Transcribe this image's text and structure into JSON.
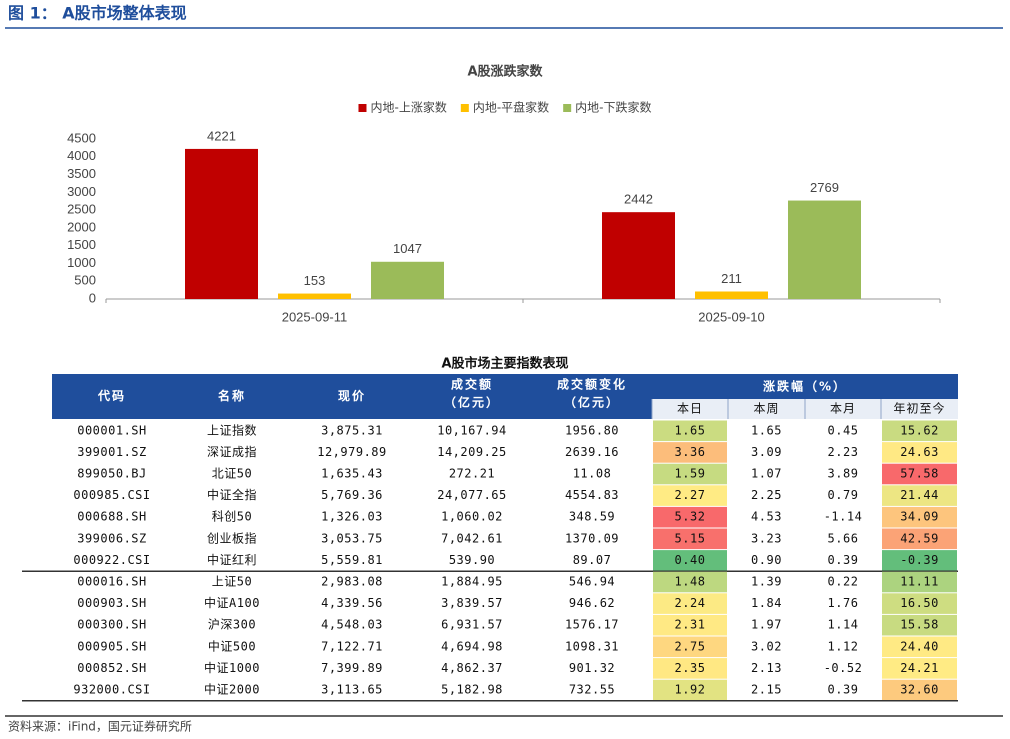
{
  "header": {
    "title": "图 1： A股市场整体表现"
  },
  "chart_data": {
    "type": "bar",
    "title": "A股涨跌家数",
    "categories": [
      "2025-09-11",
      "2025-09-10"
    ],
    "series": [
      {
        "name": "内地-上涨家数",
        "color": "#c00000",
        "values": [
          4221,
          2442
        ]
      },
      {
        "name": "内地-平盘家数",
        "color": "#ffc000",
        "values": [
          153,
          211
        ]
      },
      {
        "name": "内地-下跌家数",
        "color": "#9bbb59",
        "values": [
          1047,
          2769
        ]
      }
    ],
    "ylim": [
      0,
      4500
    ],
    "yticks": [
      0,
      500,
      1000,
      1500,
      2000,
      2500,
      3000,
      3500,
      4000,
      4500
    ],
    "legend": "top",
    "grid": false
  },
  "table": {
    "title": "A股市场主要指数表现",
    "columns": [
      [
        "代码"
      ],
      [
        "名称"
      ],
      [
        "现价"
      ],
      [
        "成交额",
        "（亿元）"
      ],
      [
        "成交额变化",
        "（亿元）"
      ]
    ],
    "group_header": "涨跌幅（%）",
    "subcolumns": [
      "本日",
      "本周",
      "本月",
      "年初至今"
    ],
    "heat_colors": {
      "low": "#63be7b",
      "mid": "#ffeb84",
      "high": "#f8696b"
    },
    "groups": [
      {
        "rows": [
          [
            "000001.SH",
            "上证指数",
            "3,875.31",
            "10,167.94",
            "1956.80",
            "1.65",
            "1.65",
            "0.45",
            "15.62"
          ],
          [
            "399001.SZ",
            "深证成指",
            "12,979.89",
            "14,209.25",
            "2639.16",
            "3.36",
            "3.09",
            "2.23",
            "24.63"
          ],
          [
            "899050.BJ",
            "北证50",
            "1,635.43",
            "272.21",
            "11.08",
            "1.59",
            "1.07",
            "3.89",
            "57.58"
          ],
          [
            "000985.CSI",
            "中证全指",
            "5,769.36",
            "24,077.65",
            "4554.83",
            "2.27",
            "2.25",
            "0.79",
            "21.44"
          ],
          [
            "000688.SH",
            "科创50",
            "1,326.03",
            "1,060.02",
            "348.59",
            "5.32",
            "4.53",
            "-1.14",
            "34.09"
          ],
          [
            "399006.SZ",
            "创业板指",
            "3,053.75",
            "7,042.61",
            "1370.09",
            "5.15",
            "3.23",
            "5.66",
            "42.59"
          ],
          [
            "000922.CSI",
            "中证红利",
            "5,559.81",
            "539.90",
            "89.07",
            "0.40",
            "0.90",
            "0.39",
            "-0.39"
          ]
        ]
      },
      {
        "rows": [
          [
            "000016.SH",
            "上证50",
            "2,983.08",
            "1,884.95",
            "546.94",
            "1.48",
            "1.39",
            "0.22",
            "11.11"
          ],
          [
            "000903.SH",
            "中证A100",
            "4,339.56",
            "3,839.57",
            "946.62",
            "2.24",
            "1.84",
            "1.76",
            "16.50"
          ],
          [
            "000300.SH",
            "沪深300",
            "4,548.03",
            "6,931.57",
            "1576.17",
            "2.31",
            "1.97",
            "1.14",
            "15.58"
          ],
          [
            "000905.SH",
            "中证500",
            "7,122.71",
            "4,694.98",
            "1098.31",
            "2.75",
            "3.02",
            "1.12",
            "24.40"
          ],
          [
            "000852.SH",
            "中证1000",
            "7,399.89",
            "4,862.37",
            "901.32",
            "2.35",
            "2.13",
            "-0.52",
            "24.21"
          ],
          [
            "932000.CSI",
            "中证2000",
            "3,113.65",
            "5,182.98",
            "732.55",
            "1.92",
            "2.15",
            "0.39",
            "32.60"
          ]
        ]
      }
    ]
  },
  "source": "资料来源：iFind，国元证券研究所"
}
